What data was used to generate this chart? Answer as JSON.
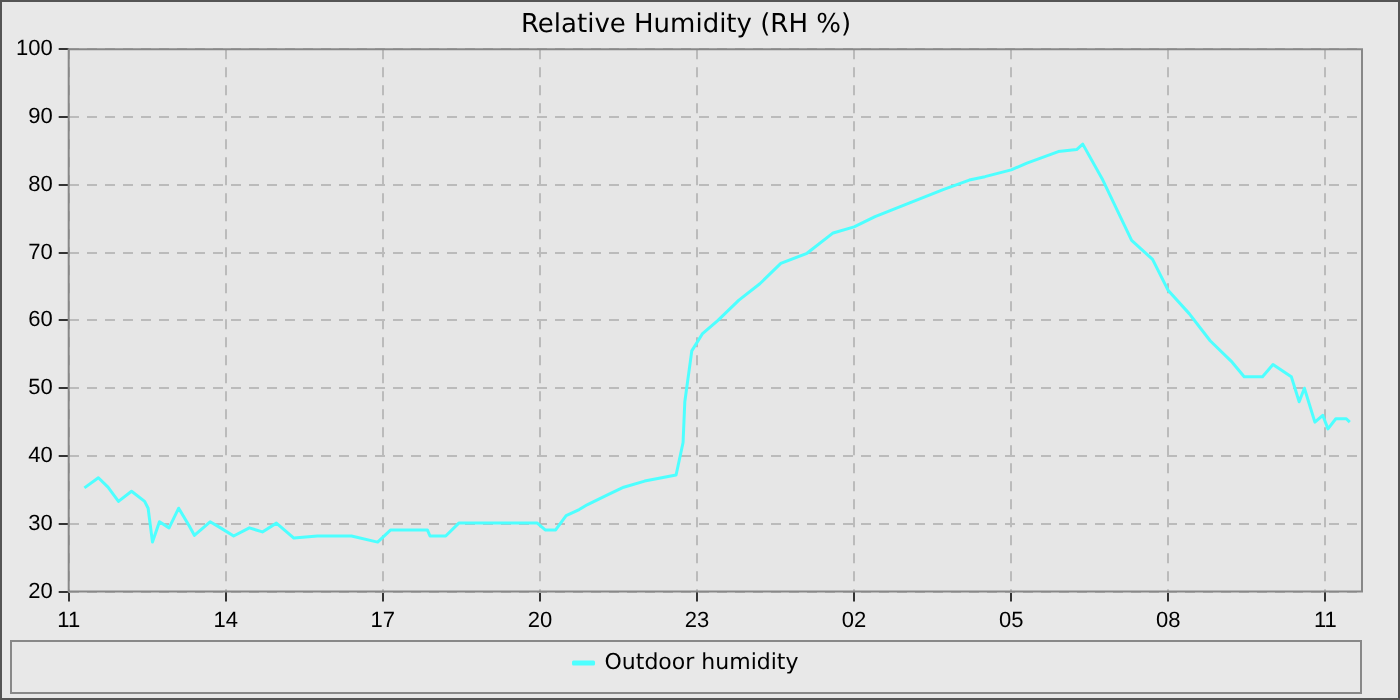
{
  "chart_data": {
    "type": "line",
    "title": "Relative Humidity (RH %)",
    "x": [
      "--01-01T11:18",
      "--01-01T11:34",
      "--01-01T11:45",
      "--01-01T11:57",
      "--01-01T12:12",
      "--01-01T12:27",
      "--01-01T12:31",
      "--01-01T12:36",
      "--01-01T12:44",
      "--01-01T12:55",
      "--01-01T13:06",
      "--01-01T13:18",
      "--01-01T13:24",
      "--01-01T13:42",
      "--01-01T13:54",
      "--01-01T14:09",
      "--01-01T14:27",
      "--01-01T14:42",
      "--01-01T14:58",
      "--01-01T15:18",
      "--01-01T15:45",
      "--01-01T16:24",
      "--01-01T16:54",
      "--01-01T17:09",
      "--01-01T17:51",
      "--01-01T17:54",
      "--01-01T18:12",
      "--01-01T18:27",
      "--01-01T19:57",
      "--01-01T20:06",
      "--01-01T20:18",
      "--01-01T20:30",
      "--01-01T20:45",
      "--01-01T20:54",
      "--01-01T21:18",
      "--01-01T21:36",
      "--01-01T22:00",
      "--01-01T22:36",
      "--01-01T22:44",
      "--01-01T22:46",
      "--01-01T22:54",
      "--01-01T23:06",
      "--01-01T23:24",
      "--01-01T23:48",
      "--01-02T00:12",
      "--01-02T00:36",
      "--01-02T01:06",
      "--01-02T01:36",
      "--01-02T02:00",
      "--01-02T02:24",
      "--01-02T03:03",
      "--01-02T03:42",
      "--01-02T04:12",
      "--01-02T04:30",
      "--01-02T05:00",
      "--01-02T05:18",
      "--01-02T05:54",
      "--01-02T06:15",
      "--01-02T06:22",
      "--01-02T06:45",
      "--01-02T07:18",
      "--01-02T07:42",
      "--01-02T08:00",
      "--01-02T08:24",
      "--01-02T08:48",
      "--01-02T09:12",
      "--01-02T09:27",
      "--01-02T09:48",
      "--01-02T10:00",
      "--01-02T10:21",
      "--01-02T10:30",
      "--01-02T10:36",
      "--01-02T10:48",
      "--01-02T10:57",
      "--01-02T11:03",
      "--01-02T11:12",
      "--01-02T11:24",
      "--01-02T11:28"
    ],
    "series": [
      {
        "name": "Outdoor humidity",
        "color": "#4dffff",
        "values": [
          35.3,
          36.8,
          35.4,
          33.3,
          34.8,
          33.3,
          32.3,
          27.3,
          30.3,
          29.4,
          32.3,
          29.7,
          28.3,
          30.3,
          29.4,
          28.2,
          29.4,
          28.8,
          30.1,
          27.9,
          28.2,
          28.2,
          27.3,
          29.1,
          29.1,
          28.2,
          28.2,
          30.1,
          30.1,
          29.1,
          29.1,
          31.2,
          32.1,
          32.8,
          34.3,
          35.4,
          36.3,
          37.2,
          42,
          48,
          55.5,
          58,
          60,
          63,
          65.4,
          68.4,
          69.9,
          72.9,
          73.8,
          75.3,
          77.3,
          79.3,
          80.7,
          81.2,
          82.2,
          83.2,
          84.9,
          85.2,
          86,
          80.7,
          71.8,
          69,
          64.4,
          61,
          57,
          54,
          51.7,
          51.7,
          53.5,
          51.7,
          48,
          50,
          45,
          46,
          44,
          45.5,
          45.5,
          45
        ]
      }
    ],
    "xlim": [
      "--01-01T11:00",
      "--01-02T11:42"
    ],
    "xticks": [
      {
        "value": "--01-01T11:00",
        "label": "11"
      },
      {
        "value": "--01-01T14:00",
        "label": "14"
      },
      {
        "value": "--01-01T17:00",
        "label": "17"
      },
      {
        "value": "--01-01T20:00",
        "label": "20"
      },
      {
        "value": "--01-01T23:00",
        "label": "23"
      },
      {
        "value": "--01-02T02:00",
        "label": "02"
      },
      {
        "value": "--01-02T05:00",
        "label": "05"
      },
      {
        "value": "--01-02T08:00",
        "label": "08"
      },
      {
        "value": "--01-02T11:00",
        "label": "11"
      }
    ],
    "ylim": [
      20,
      100
    ],
    "yticks": [
      20,
      30,
      40,
      50,
      60,
      70,
      80,
      90,
      100
    ],
    "grid": true,
    "legend": "bottom",
    "line_style": "solid",
    "marker": "none"
  }
}
